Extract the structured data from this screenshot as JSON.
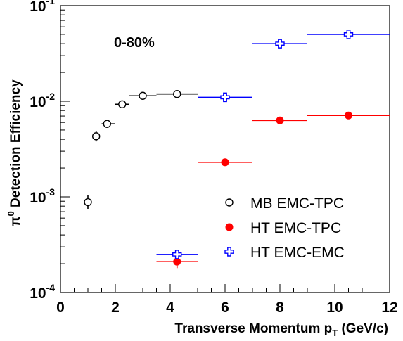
{
  "chart_data": {
    "type": "scatter",
    "annotation": "0-80%",
    "xlabel": "Transverse Momentum p",
    "xlabel_sub": "T",
    "xlabel_suffix": " (GeV/c)",
    "ylabel_pi": "π",
    "ylabel_sup": "0",
    "ylabel_rest": " Detection Efficiency",
    "xlim": [
      0,
      12
    ],
    "ylim": [
      0.0001,
      0.1
    ],
    "yscale": "log",
    "x_ticks": [
      {
        "v": 0,
        "label": "0"
      },
      {
        "v": 2,
        "label": "2"
      },
      {
        "v": 4,
        "label": "4"
      },
      {
        "v": 6,
        "label": "6"
      },
      {
        "v": 8,
        "label": "8"
      },
      {
        "v": 10,
        "label": "10"
      },
      {
        "v": 12,
        "label": "12"
      }
    ],
    "y_ticks": [
      {
        "exp": -4,
        "base": "10",
        "sup": "-4"
      },
      {
        "exp": -3,
        "base": "10",
        "sup": "-3"
      },
      {
        "exp": -2,
        "base": "10",
        "sup": "-2"
      },
      {
        "exp": -1,
        "base": "10",
        "sup": "-1"
      }
    ],
    "legend_position": "center-right",
    "series": [
      {
        "name": "MB EMC-TPC",
        "marker": "open-circle",
        "color": "#000000",
        "points": [
          {
            "x": 1.0,
            "xlo": 1.0,
            "xhi": 1.0,
            "y": 0.00088,
            "ylo": 0.00075,
            "yhi": 0.00105
          },
          {
            "x": 1.3,
            "xlo": 1.3,
            "xhi": 1.3,
            "y": 0.0043,
            "ylo": 0.0038,
            "yhi": 0.0049
          },
          {
            "x": 1.7,
            "xlo": 1.5,
            "xhi": 2.0,
            "y": 0.0058,
            "ylo": 0.0056,
            "yhi": 0.006
          },
          {
            "x": 2.25,
            "xlo": 2.0,
            "xhi": 2.5,
            "y": 0.0093,
            "ylo": 0.0091,
            "yhi": 0.0095
          },
          {
            "x": 3.0,
            "xlo": 2.5,
            "xhi": 3.5,
            "y": 0.0114,
            "ylo": 0.0113,
            "yhi": 0.0115
          },
          {
            "x": 4.25,
            "xlo": 3.5,
            "xhi": 5.0,
            "y": 0.0119,
            "ylo": 0.0118,
            "yhi": 0.012
          }
        ]
      },
      {
        "name": "HT EMC-TPC",
        "marker": "filled-circle",
        "color": "#ff0000",
        "points": [
          {
            "x": 4.25,
            "xlo": 3.5,
            "xhi": 5.0,
            "y": 0.00021,
            "ylo": 0.00018,
            "yhi": 0.00023
          },
          {
            "x": 6.0,
            "xlo": 5.0,
            "xhi": 7.0,
            "y": 0.0023,
            "ylo": 0.0023,
            "yhi": 0.0023
          },
          {
            "x": 8.0,
            "xlo": 7.0,
            "xhi": 9.0,
            "y": 0.0063,
            "ylo": 0.0063,
            "yhi": 0.0063
          },
          {
            "x": 10.5,
            "xlo": 9.0,
            "xhi": 12.0,
            "y": 0.0071,
            "ylo": 0.0071,
            "yhi": 0.0071
          }
        ]
      },
      {
        "name": "HT EMC-EMC",
        "marker": "open-cross",
        "color": "#0000ff",
        "points": [
          {
            "x": 4.25,
            "xlo": 3.5,
            "xhi": 5.0,
            "y": 0.00025,
            "ylo": 0.00025,
            "yhi": 0.00025
          },
          {
            "x": 6.0,
            "xlo": 5.0,
            "xhi": 7.0,
            "y": 0.011,
            "ylo": 0.011,
            "yhi": 0.011
          },
          {
            "x": 8.0,
            "xlo": 7.0,
            "xhi": 9.0,
            "y": 0.04,
            "ylo": 0.04,
            "yhi": 0.04
          },
          {
            "x": 10.5,
            "xlo": 9.0,
            "xhi": 12.0,
            "y": 0.05,
            "ylo": 0.05,
            "yhi": 0.05
          }
        ]
      }
    ]
  }
}
